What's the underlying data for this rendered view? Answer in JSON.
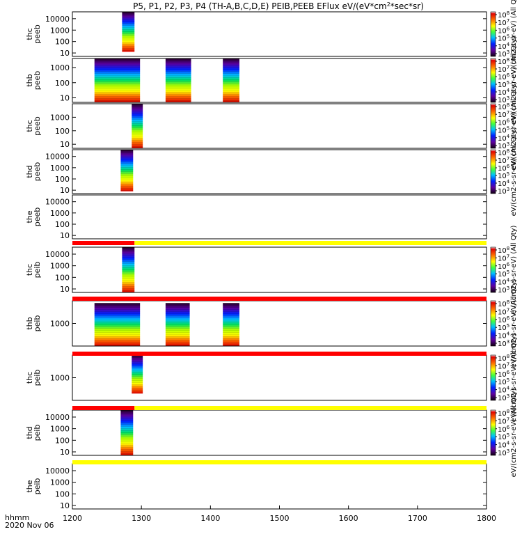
{
  "chart_data": {
    "type": "heatmap",
    "title": "P5, P1, P2, P3, P4 (TH-A,B,C,D,E) PEIB,PEEB EFlux eV/(eV*cm2*sec*sr)",
    "title_parts": {
      "main": "P5, P1, P2, P3, P4 (TH-A,B,C,D,E) PEIB,PEEB EFlux eV/(eV*cm",
      "sup": "2",
      "tail": "*sec*sr)"
    },
    "xlim": [
      1200,
      1800
    ],
    "x_ticks": [
      "1200",
      "1300",
      "1400",
      "1500",
      "1600",
      "1700",
      "1800"
    ],
    "x_units": "hhmm",
    "date": "2020 Nov 06",
    "colormap": "rainbow",
    "panels": [
      {
        "id": "thc-peeb",
        "ylabel": [
          "thc",
          "peeb"
        ],
        "yticks": [
          "10000",
          "1000",
          "100",
          "10"
        ],
        "log_range": [
          0.7,
          4.6
        ],
        "blocks": [
          {
            "x0": 1272,
            "x1": 1290,
            "y_top": 4.6,
            "y_bot": 1.1
          }
        ],
        "colorbar": {
          "ticks": [
            "10^8",
            "10^7",
            "10^6",
            "10^5",
            "10^4",
            "10^3"
          ],
          "label": "eV/(cm2-s-sr-eV)  (All Qty)"
        }
      },
      {
        "id": "thb-peeb",
        "ylabel": [
          "thb",
          "peeb"
        ],
        "yticks": [
          "1000",
          "100",
          "10"
        ],
        "log_range": [
          0.7,
          3.6
        ],
        "blocks": [
          {
            "x0": 1232,
            "x1": 1298,
            "y_top": 3.6,
            "y_bot": 0.7
          },
          {
            "x0": 1335,
            "x1": 1372,
            "y_top": 3.6,
            "y_bot": 0.7
          },
          {
            "x0": 1418,
            "x1": 1442,
            "y_top": 3.6,
            "y_bot": 0.7
          }
        ],
        "colorbar": {
          "ticks": [
            "10^8",
            "10^7",
            "10^6",
            "10^5",
            "10^4",
            "10^3"
          ],
          "label": "eV/(cm2-s-sr-eV)  (All Qty)"
        }
      },
      {
        "id": "thc-peeb-2",
        "ylabel": [
          "thc",
          "peeb"
        ],
        "yticks": [
          "1000",
          "100",
          "10"
        ],
        "log_range": [
          0.7,
          4.0
        ],
        "blocks": [
          {
            "x0": 1286,
            "x1": 1302,
            "y_top": 4.0,
            "y_bot": 0.7
          }
        ],
        "colorbar": {
          "ticks": [
            "10^8",
            "10^7",
            "10^6",
            "10^5",
            "10^4",
            "10^3"
          ],
          "label": "eV/(cm2-s-sr-eV)  (All Qty)"
        }
      },
      {
        "id": "thd-peeb",
        "ylabel": [
          "thd",
          "peeb"
        ],
        "yticks": [
          "10000",
          "1000",
          "100",
          "10"
        ],
        "log_range": [
          0.7,
          4.6
        ],
        "blocks": [
          {
            "x0": 1270,
            "x1": 1288,
            "y_top": 4.6,
            "y_bot": 0.9
          }
        ],
        "colorbar": {
          "ticks": [
            "10^8",
            "10^7",
            "10^6",
            "10^5",
            "10^4",
            "10^3"
          ],
          "label": "eV/(cm2-s-sr-eV)  (All Qty)"
        }
      },
      {
        "id": "the-peeb",
        "ylabel": [
          "the",
          "peeb"
        ],
        "yticks": [
          "10000",
          "1000",
          "100",
          "10"
        ],
        "log_range": [
          0.7,
          4.6
        ],
        "blocks": [],
        "colorbar": null
      },
      {
        "id": "thc-peib",
        "ylabel": [
          "thc",
          "peib"
        ],
        "yticks": [
          "10000",
          "1000",
          "100",
          "10"
        ],
        "log_range": [
          0.7,
          4.6
        ],
        "blocks": [
          {
            "x0": 1272,
            "x1": 1290,
            "y_top": 4.6,
            "y_bot": 0.7
          }
        ],
        "colorbar": {
          "ticks": [
            "10^8",
            "10^7",
            "10^6",
            "10^5",
            "10^4",
            "10^3"
          ],
          "label": "eV/(cm2-s-sr-eV)  (All Qty)"
        }
      },
      {
        "id": "thb-peib",
        "ylabel": [
          "thb",
          "peib"
        ],
        "yticks": [
          "1000"
        ],
        "log_range": [
          2.0,
          4.0
        ],
        "blocks": [
          {
            "x0": 1232,
            "x1": 1298,
            "y_top": 3.9,
            "y_bot": 2.0
          },
          {
            "x0": 1335,
            "x1": 1370,
            "y_top": 3.9,
            "y_bot": 2.0
          },
          {
            "x0": 1418,
            "x1": 1442,
            "y_top": 3.9,
            "y_bot": 2.0
          }
        ],
        "colorbar": {
          "ticks": [
            "10^8",
            "10^7",
            "10^6",
            "10^5",
            "10^4",
            "10^3"
          ],
          "label": "eV/(cm2-s-sr-eV)  (All Qty)"
        }
      },
      {
        "id": "thc-peib-2",
        "ylabel": [
          "thc",
          "peib"
        ],
        "yticks": [
          "1000"
        ],
        "log_range": [
          2.0,
          4.0
        ],
        "blocks": [
          {
            "x0": 1286,
            "x1": 1302,
            "y_top": 4.0,
            "y_bot": 2.3
          }
        ],
        "colorbar": {
          "ticks": [
            "10^8",
            "10^7",
            "10^6",
            "10^5",
            "10^4",
            "10^3"
          ],
          "label": "eV/(cm2-s-sr-eV)  (All Qty)"
        }
      },
      {
        "id": "thd-peib",
        "ylabel": [
          "thd",
          "peib"
        ],
        "yticks": [
          "10000",
          "1000",
          "100",
          "10"
        ],
        "log_range": [
          0.7,
          4.6
        ],
        "blocks": [
          {
            "x0": 1270,
            "x1": 1288,
            "y_top": 4.6,
            "y_bot": 0.7
          }
        ],
        "colorbar": {
          "ticks": [
            "10^8",
            "10^7",
            "10^6",
            "10^5",
            "10^4",
            "10^3"
          ],
          "label": "eV/(cm2-s-sr-eV)  (All Qty)"
        }
      },
      {
        "id": "the-peib",
        "ylabel": [
          "the",
          "peib"
        ],
        "yticks": [
          "10000",
          "1000",
          "100",
          "10"
        ],
        "log_range": [
          0.7,
          4.6
        ],
        "blocks": [],
        "colorbar": null
      }
    ],
    "status_bars": [
      {
        "after_panel": 4,
        "segments": [
          {
            "x0": 1200,
            "x1": 1290,
            "color": "red"
          },
          {
            "x0": 1290,
            "x1": 1800,
            "color": "yellow"
          }
        ]
      },
      {
        "after_panel": 5,
        "segments": [
          {
            "x0": 1200,
            "x1": 1800,
            "color": "red"
          }
        ]
      },
      {
        "after_panel": 6,
        "segments": [
          {
            "x0": 1200,
            "x1": 1800,
            "color": "red"
          }
        ]
      },
      {
        "after_panel": 7,
        "segments": [
          {
            "x0": 1200,
            "x1": 1290,
            "color": "red"
          },
          {
            "x0": 1290,
            "x1": 1800,
            "color": "yellow"
          }
        ]
      },
      {
        "after_panel": 8,
        "segments": [
          {
            "x0": 1200,
            "x1": 1800,
            "color": "yellow"
          }
        ]
      }
    ]
  }
}
